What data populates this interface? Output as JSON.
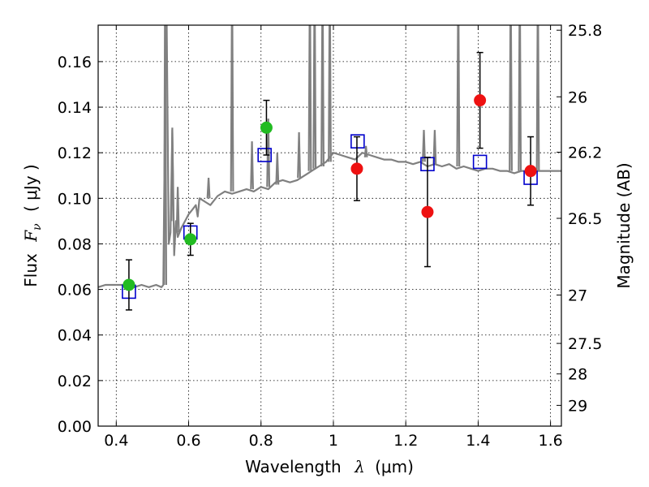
{
  "chart_data": {
    "type": "scatter",
    "title": "",
    "xlabel": "Wavelength",
    "xlabel_symbol": "λ",
    "xlabel_unit": "(μm)",
    "ylabel": "Flux",
    "ylabel_symbol": "F",
    "ylabel_symbol_sub": "ν",
    "ylabel_unit": "( μJy )",
    "y2label": "Magnitude (AB)",
    "xlim": [
      0.35,
      1.63
    ],
    "ylim": [
      0.0,
      0.176
    ],
    "grid": true,
    "x_ticks": [
      {
        "value": 0.4,
        "label": "0.4"
      },
      {
        "value": 0.6,
        "label": "0.6"
      },
      {
        "value": 0.8,
        "label": "0.8"
      },
      {
        "value": 1.0,
        "label": "1"
      },
      {
        "value": 1.2,
        "label": "1.2"
      },
      {
        "value": 1.4,
        "label": "1.4"
      },
      {
        "value": 1.6,
        "label": "1.6"
      }
    ],
    "y_ticks": [
      {
        "value": 0.0,
        "label": "0.00"
      },
      {
        "value": 0.02,
        "label": "0.02"
      },
      {
        "value": 0.04,
        "label": "0.04"
      },
      {
        "value": 0.06,
        "label": "0.06"
      },
      {
        "value": 0.08,
        "label": "0.08"
      },
      {
        "value": 0.1,
        "label": "0.10"
      },
      {
        "value": 0.12,
        "label": "0.12"
      },
      {
        "value": 0.14,
        "label": "0.14"
      },
      {
        "value": 0.16,
        "label": "0.16"
      }
    ],
    "y2_ticks": [
      {
        "value": 25.8,
        "label": "25.8"
      },
      {
        "value": 26.0,
        "label": "26"
      },
      {
        "value": 26.2,
        "label": "26.2"
      },
      {
        "value": 26.5,
        "label": "26.5"
      },
      {
        "value": 27.0,
        "label": "27"
      },
      {
        "value": 27.5,
        "label": "27.5"
      },
      {
        "value": 28.0,
        "label": "28"
      },
      {
        "value": 29.0,
        "label": "29"
      }
    ],
    "colors": {
      "spectrum": "#808080",
      "model": "#0000cc",
      "optical": "#22bb22",
      "nir": "#ee1111",
      "errorbar": "#000000",
      "grid": "#000000"
    },
    "series": [
      {
        "name": "model spectrum",
        "kind": "line",
        "x": [
          0.35,
          0.37,
          0.39,
          0.41,
          0.43,
          0.45,
          0.47,
          0.49,
          0.51,
          0.525,
          0.53,
          0.535,
          0.538,
          0.545,
          0.55,
          0.555,
          0.56,
          0.565,
          0.57,
          0.58,
          0.59,
          0.6,
          0.61,
          0.62,
          0.625,
          0.63,
          0.64,
          0.66,
          0.68,
          0.7,
          0.72,
          0.74,
          0.76,
          0.78,
          0.8,
          0.82,
          0.84,
          0.86,
          0.88,
          0.9,
          0.92,
          0.94,
          0.96,
          0.98,
          1.0,
          1.02,
          1.04,
          1.06,
          1.08,
          1.1,
          1.12,
          1.14,
          1.16,
          1.18,
          1.2,
          1.22,
          1.24,
          1.26,
          1.28,
          1.3,
          1.32,
          1.34,
          1.36,
          1.38,
          1.4,
          1.42,
          1.44,
          1.46,
          1.48,
          1.5,
          1.52,
          1.54,
          1.56,
          1.58,
          1.6,
          1.63
        ],
        "y": [
          0.061,
          0.062,
          0.062,
          0.062,
          0.062,
          0.061,
          0.062,
          0.061,
          0.062,
          0.061,
          0.062,
          0.14,
          0.2,
          0.08,
          0.085,
          0.13,
          0.075,
          0.09,
          0.083,
          0.087,
          0.09,
          0.093,
          0.095,
          0.097,
          0.092,
          0.1,
          0.099,
          0.097,
          0.101,
          0.103,
          0.102,
          0.103,
          0.104,
          0.103,
          0.105,
          0.104,
          0.107,
          0.108,
          0.107,
          0.108,
          0.11,
          0.112,
          0.114,
          0.116,
          0.12,
          0.119,
          0.118,
          0.117,
          0.12,
          0.119,
          0.118,
          0.117,
          0.117,
          0.116,
          0.116,
          0.115,
          0.116,
          0.114,
          0.115,
          0.114,
          0.115,
          0.113,
          0.114,
          0.113,
          0.112,
          0.113,
          0.113,
          0.112,
          0.112,
          0.111,
          0.112,
          0.112,
          0.112,
          0.112,
          0.112,
          0.112
        ]
      },
      {
        "name": "emission lines",
        "kind": "spikes",
        "x": [
          0.535,
          0.555,
          0.57,
          0.655,
          0.72,
          0.775,
          0.82,
          0.845,
          0.905,
          0.935,
          0.948,
          0.97,
          0.99,
          1.09,
          1.25,
          1.28,
          1.345,
          1.49,
          1.515,
          1.565
        ],
        "base": [
          0.062,
          0.09,
          0.085,
          0.1,
          0.103,
          0.104,
          0.105,
          0.106,
          0.109,
          0.112,
          0.113,
          0.114,
          0.116,
          0.118,
          0.116,
          0.115,
          0.114,
          0.112,
          0.112,
          0.112
        ],
        "peak": [
          0.2,
          0.131,
          0.105,
          0.109,
          0.2,
          0.125,
          0.135,
          0.12,
          0.129,
          0.2,
          0.2,
          0.2,
          0.2,
          0.123,
          0.13,
          0.13,
          0.2,
          0.2,
          0.2,
          0.2
        ]
      },
      {
        "name": "model photometry",
        "kind": "open-square",
        "x": [
          0.435,
          0.605,
          0.81,
          1.067,
          1.26,
          1.405,
          1.545
        ],
        "y": [
          0.059,
          0.085,
          0.119,
          0.125,
          0.115,
          0.116,
          0.109
        ]
      },
      {
        "name": "optical photometry",
        "kind": "filled-circle",
        "x": [
          0.435,
          0.605,
          0.815
        ],
        "y": [
          0.062,
          0.082,
          0.131
        ],
        "err": [
          0.011,
          0.007,
          0.012
        ]
      },
      {
        "name": "near-IR photometry",
        "kind": "filled-circle",
        "x": [
          1.065,
          1.26,
          1.405,
          1.545
        ],
        "y": [
          0.113,
          0.094,
          0.143,
          0.112
        ],
        "err": [
          0.014,
          0.024,
          0.021,
          0.015
        ]
      }
    ]
  }
}
